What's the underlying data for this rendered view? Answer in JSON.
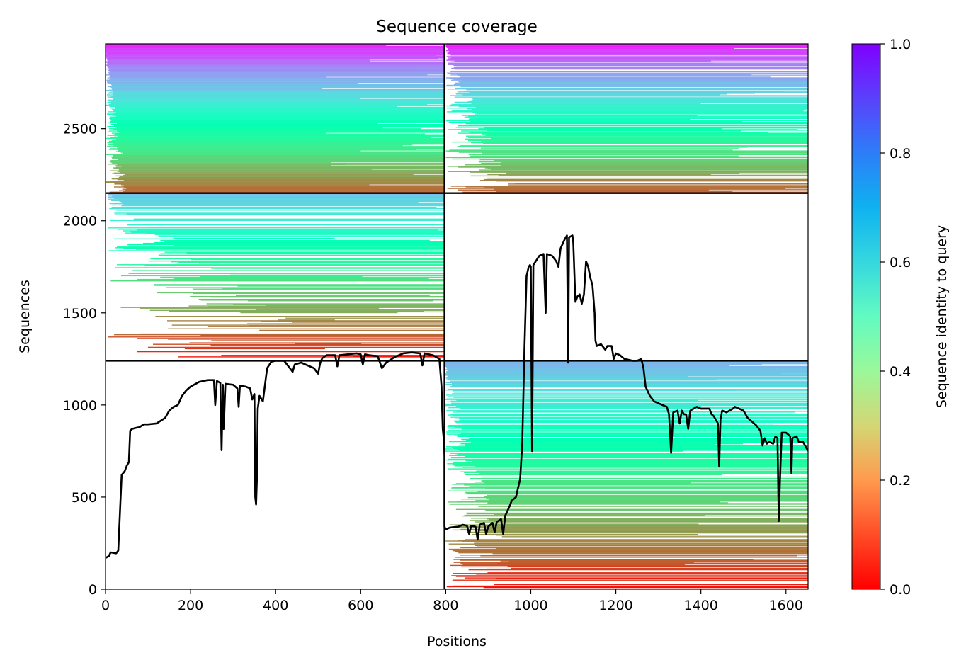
{
  "chart_data": {
    "type": "heatmap",
    "title": "Sequence coverage",
    "xlabel": "Positions",
    "ylabel": "Sequences",
    "xlim": [
      0,
      1652
    ],
    "ylim": [
      0,
      2960
    ],
    "x_ticks": [
      0,
      200,
      400,
      600,
      800,
      1000,
      1200,
      1400,
      1600
    ],
    "y_ticks": [
      0,
      500,
      1000,
      1500,
      2000,
      2500
    ],
    "colorbar": {
      "label": "Sequence identity to query",
      "range": [
        0.0,
        1.0
      ],
      "ticks": [
        "0.0",
        "0.2",
        "0.4",
        "0.6",
        "0.8",
        "1.0"
      ],
      "colormap": "rainbow_r"
    },
    "block_separators": {
      "x": [
        797
      ],
      "y": [
        1240,
        2150
      ]
    },
    "blocks": [
      {
        "x0": 0,
        "x1": 797,
        "y0": 2150,
        "y1": 2960,
        "x_start_min": 0,
        "x_start_max": 55,
        "x_end": 797,
        "identity_top": 0.96,
        "identity_bottom": 0.12,
        "fill": 1.0
      },
      {
        "x0": 797,
        "x1": 1652,
        "y0": 2150,
        "y1": 2960,
        "x_start_min": 800,
        "x_start_max": 975,
        "x_end": 1652,
        "identity_top": 0.96,
        "identity_bottom": 0.12,
        "fill": 0.85
      },
      {
        "x0": 0,
        "x1": 797,
        "y0": 1240,
        "y1": 2150,
        "x_start_min": 5,
        "x_start_max": 600,
        "x_end": 797,
        "identity_top": 0.72,
        "identity_bottom": 0.02,
        "fill": 0.55
      },
      {
        "x0": 797,
        "x1": 1652,
        "y0": 0,
        "y1": 1240,
        "x_start_min": 797,
        "x_start_max": 975,
        "x_end": 1652,
        "identity_top": 0.76,
        "identity_bottom": 0.02,
        "fill": 0.75
      }
    ],
    "series": [
      {
        "type": "line",
        "color": "#000000",
        "points": [
          [
            0,
            170
          ],
          [
            8,
            180
          ],
          [
            12,
            200
          ],
          [
            25,
            195
          ],
          [
            30,
            210
          ],
          [
            35,
            470
          ],
          [
            38,
            620
          ],
          [
            45,
            640
          ],
          [
            50,
            670
          ],
          [
            55,
            690
          ],
          [
            58,
            860
          ],
          [
            62,
            870
          ],
          [
            70,
            875
          ],
          [
            80,
            880
          ],
          [
            90,
            895
          ],
          [
            100,
            895
          ],
          [
            120,
            900
          ],
          [
            140,
            930
          ],
          [
            150,
            970
          ],
          [
            160,
            990
          ],
          [
            170,
            1000
          ],
          [
            180,
            1050
          ],
          [
            190,
            1080
          ],
          [
            200,
            1100
          ],
          [
            220,
            1125
          ],
          [
            240,
            1135
          ],
          [
            255,
            1135
          ],
          [
            258,
            1000
          ],
          [
            262,
            1130
          ],
          [
            270,
            1120
          ],
          [
            273,
            755
          ],
          [
            276,
            1110
          ],
          [
            278,
            870
          ],
          [
            282,
            1115
          ],
          [
            300,
            1110
          ],
          [
            310,
            1090
          ],
          [
            313,
            990
          ],
          [
            316,
            1105
          ],
          [
            330,
            1100
          ],
          [
            340,
            1090
          ],
          [
            345,
            1030
          ],
          [
            350,
            1060
          ],
          [
            352,
            500
          ],
          [
            354,
            460
          ],
          [
            356,
            600
          ],
          [
            358,
            980
          ],
          [
            362,
            1050
          ],
          [
            370,
            1020
          ],
          [
            380,
            1200
          ],
          [
            390,
            1235
          ],
          [
            400,
            1240
          ],
          [
            420,
            1240
          ],
          [
            430,
            1210
          ],
          [
            440,
            1180
          ],
          [
            445,
            1220
          ],
          [
            460,
            1230
          ],
          [
            480,
            1210
          ],
          [
            490,
            1200
          ],
          [
            500,
            1170
          ],
          [
            505,
            1230
          ],
          [
            510,
            1255
          ],
          [
            520,
            1270
          ],
          [
            540,
            1270
          ],
          [
            545,
            1210
          ],
          [
            550,
            1270
          ],
          [
            570,
            1275
          ],
          [
            590,
            1280
          ],
          [
            600,
            1275
          ],
          [
            605,
            1220
          ],
          [
            610,
            1275
          ],
          [
            620,
            1270
          ],
          [
            640,
            1265
          ],
          [
            650,
            1200
          ],
          [
            660,
            1230
          ],
          [
            680,
            1260
          ],
          [
            700,
            1280
          ],
          [
            720,
            1285
          ],
          [
            740,
            1280
          ],
          [
            745,
            1215
          ],
          [
            750,
            1280
          ],
          [
            770,
            1270
          ],
          [
            785,
            1250
          ],
          [
            790,
            1100
          ],
          [
            793,
            870
          ],
          [
            796,
            800
          ],
          [
            797,
            720
          ],
          [
            797,
            340
          ],
          [
            800,
            325
          ],
          [
            810,
            335
          ],
          [
            830,
            340
          ],
          [
            840,
            350
          ],
          [
            850,
            345
          ],
          [
            855,
            300
          ],
          [
            860,
            345
          ],
          [
            870,
            340
          ],
          [
            875,
            270
          ],
          [
            880,
            350
          ],
          [
            890,
            360
          ],
          [
            895,
            300
          ],
          [
            900,
            340
          ],
          [
            910,
            360
          ],
          [
            915,
            310
          ],
          [
            920,
            365
          ],
          [
            930,
            380
          ],
          [
            935,
            300
          ],
          [
            940,
            400
          ],
          [
            950,
            450
          ],
          [
            955,
            480
          ],
          [
            965,
            500
          ],
          [
            970,
            550
          ],
          [
            975,
            600
          ],
          [
            980,
            800
          ],
          [
            985,
            1300
          ],
          [
            990,
            1700
          ],
          [
            995,
            1750
          ],
          [
            998,
            1760
          ],
          [
            1000,
            1750
          ],
          [
            1003,
            750
          ],
          [
            1006,
            1760
          ],
          [
            1020,
            1810
          ],
          [
            1030,
            1820
          ],
          [
            1035,
            1500
          ],
          [
            1038,
            1820
          ],
          [
            1050,
            1810
          ],
          [
            1060,
            1780
          ],
          [
            1065,
            1750
          ],
          [
            1070,
            1850
          ],
          [
            1080,
            1900
          ],
          [
            1085,
            1920
          ],
          [
            1088,
            1230
          ],
          [
            1090,
            1910
          ],
          [
            1098,
            1920
          ],
          [
            1100,
            1880
          ],
          [
            1105,
            1560
          ],
          [
            1110,
            1590
          ],
          [
            1115,
            1600
          ],
          [
            1120,
            1550
          ],
          [
            1125,
            1600
          ],
          [
            1130,
            1780
          ],
          [
            1135,
            1750
          ],
          [
            1140,
            1690
          ],
          [
            1145,
            1650
          ],
          [
            1150,
            1500
          ],
          [
            1152,
            1350
          ],
          [
            1155,
            1320
          ],
          [
            1165,
            1330
          ],
          [
            1175,
            1300
          ],
          [
            1180,
            1320
          ],
          [
            1190,
            1320
          ],
          [
            1195,
            1250
          ],
          [
            1200,
            1280
          ],
          [
            1210,
            1270
          ],
          [
            1220,
            1250
          ],
          [
            1240,
            1240
          ],
          [
            1250,
            1240
          ],
          [
            1260,
            1250
          ],
          [
            1265,
            1200
          ],
          [
            1270,
            1100
          ],
          [
            1280,
            1050
          ],
          [
            1290,
            1020
          ],
          [
            1310,
            1000
          ],
          [
            1320,
            990
          ],
          [
            1325,
            950
          ],
          [
            1330,
            740
          ],
          [
            1335,
            960
          ],
          [
            1345,
            970
          ],
          [
            1350,
            900
          ],
          [
            1355,
            970
          ],
          [
            1360,
            950
          ],
          [
            1365,
            950
          ],
          [
            1370,
            870
          ],
          [
            1375,
            970
          ],
          [
            1390,
            990
          ],
          [
            1400,
            980
          ],
          [
            1420,
            980
          ],
          [
            1425,
            950
          ],
          [
            1430,
            940
          ],
          [
            1440,
            900
          ],
          [
            1443,
            665
          ],
          [
            1446,
            920
          ],
          [
            1450,
            970
          ],
          [
            1460,
            960
          ],
          [
            1475,
            980
          ],
          [
            1480,
            990
          ],
          [
            1500,
            970
          ],
          [
            1510,
            930
          ],
          [
            1520,
            910
          ],
          [
            1530,
            890
          ],
          [
            1540,
            860
          ],
          [
            1545,
            780
          ],
          [
            1550,
            820
          ],
          [
            1555,
            790
          ],
          [
            1560,
            800
          ],
          [
            1570,
            790
          ],
          [
            1575,
            830
          ],
          [
            1580,
            820
          ],
          [
            1583,
            370
          ],
          [
            1586,
            600
          ],
          [
            1590,
            850
          ],
          [
            1600,
            850
          ],
          [
            1610,
            830
          ],
          [
            1613,
            630
          ],
          [
            1615,
            820
          ],
          [
            1625,
            830
          ],
          [
            1630,
            800
          ],
          [
            1640,
            800
          ],
          [
            1652,
            750
          ]
        ]
      }
    ]
  }
}
